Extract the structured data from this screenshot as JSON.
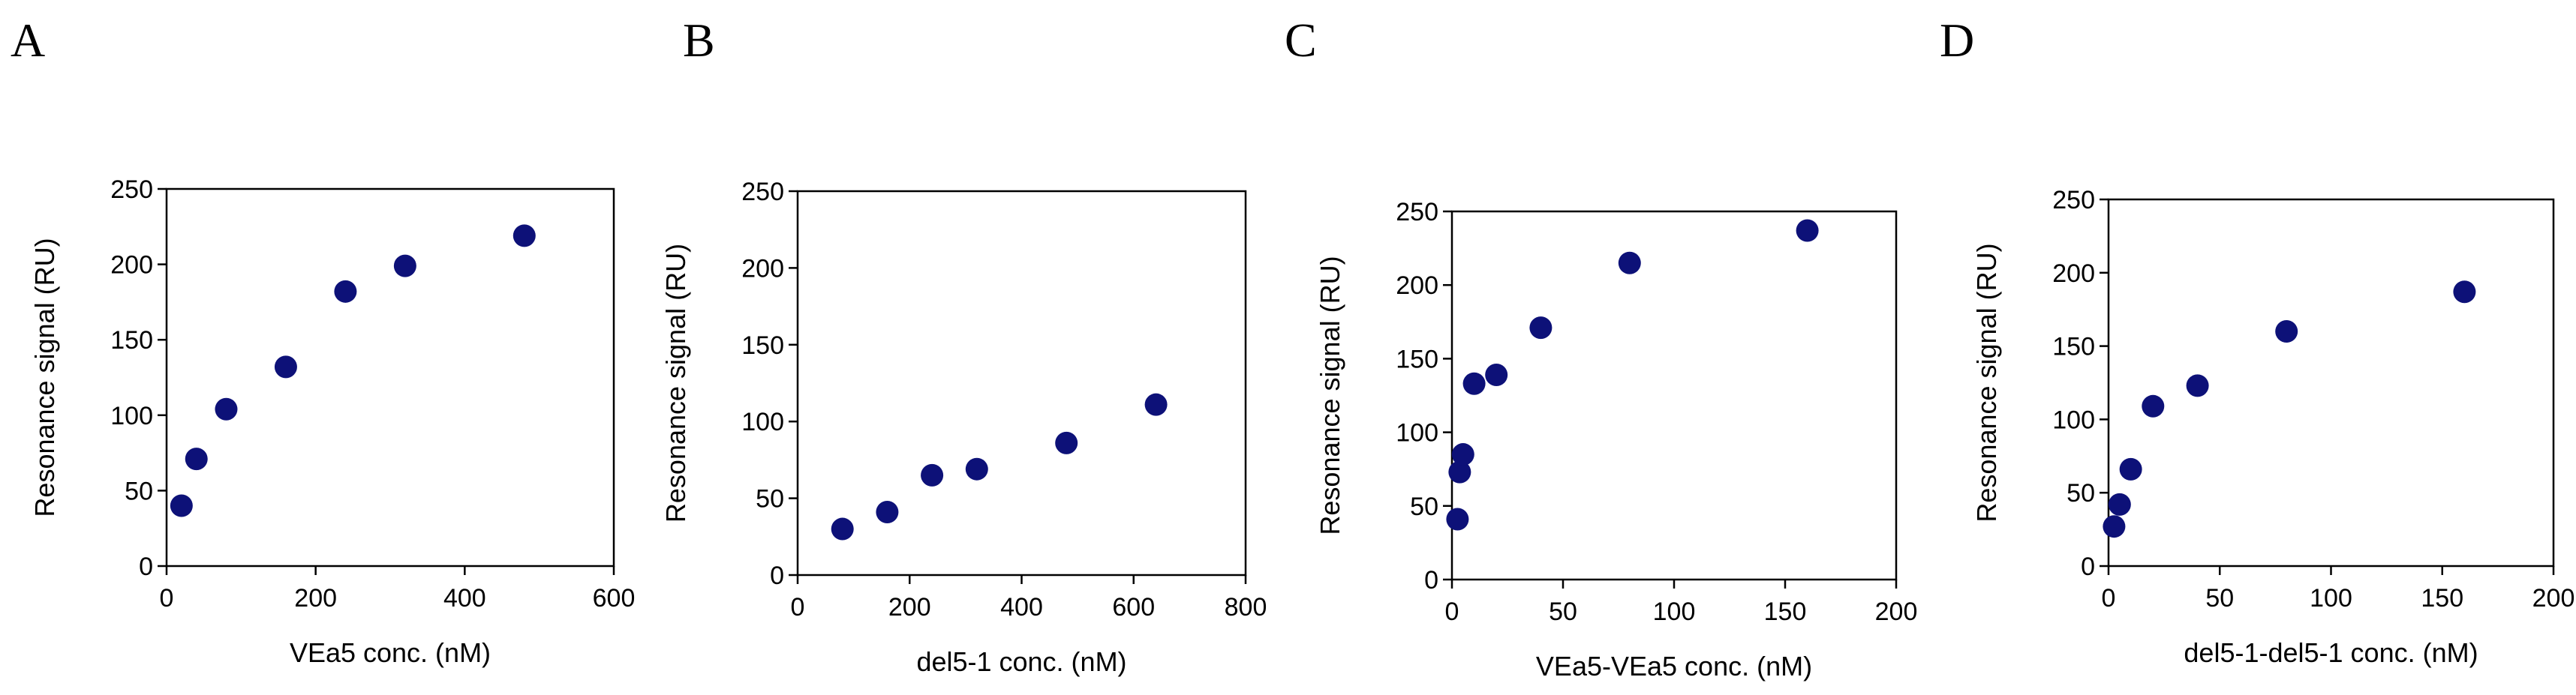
{
  "chart_data": [
    {
      "type": "scatter",
      "panel": "A",
      "title": "",
      "xlabel": "VEa5 conc. (nM)",
      "ylabel": "Resonance signal (RU)",
      "xlim": [
        0,
        600
      ],
      "ylim": [
        0,
        250
      ],
      "xticks": [
        0,
        200,
        400,
        600
      ],
      "yticks": [
        0,
        50,
        100,
        150,
        200,
        250
      ],
      "grid": false,
      "points": [
        {
          "x": 20,
          "y": 40
        },
        {
          "x": 40,
          "y": 71
        },
        {
          "x": 80,
          "y": 104
        },
        {
          "x": 160,
          "y": 132
        },
        {
          "x": 240,
          "y": 182
        },
        {
          "x": 320,
          "y": 199
        },
        {
          "x": 480,
          "y": 219
        }
      ]
    },
    {
      "type": "scatter",
      "panel": "B",
      "title": "",
      "xlabel": "del5-1 conc. (nM)",
      "ylabel": "Resonance signal (RU)",
      "xlim": [
        0,
        800
      ],
      "ylim": [
        0,
        250
      ],
      "xticks": [
        0,
        200,
        400,
        600,
        800
      ],
      "yticks": [
        0,
        50,
        100,
        150,
        200,
        250
      ],
      "grid": false,
      "points": [
        {
          "x": 80,
          "y": 30
        },
        {
          "x": 160,
          "y": 41
        },
        {
          "x": 240,
          "y": 65
        },
        {
          "x": 320,
          "y": 69
        },
        {
          "x": 480,
          "y": 86
        },
        {
          "x": 640,
          "y": 111
        }
      ]
    },
    {
      "type": "scatter",
      "panel": "C",
      "title": "",
      "xlabel": "VEa5-VEa5 conc. (nM)",
      "ylabel": "Resonance signal (RU)",
      "xlim": [
        0,
        200
      ],
      "ylim": [
        0,
        250
      ],
      "xticks": [
        0,
        50,
        100,
        150,
        200
      ],
      "yticks": [
        0,
        50,
        100,
        150,
        200,
        250
      ],
      "grid": false,
      "points": [
        {
          "x": 2.5,
          "y": 41
        },
        {
          "x": 3.5,
          "y": 73
        },
        {
          "x": 5,
          "y": 85
        },
        {
          "x": 10,
          "y": 133
        },
        {
          "x": 20,
          "y": 139
        },
        {
          "x": 40,
          "y": 171
        },
        {
          "x": 80,
          "y": 215
        },
        {
          "x": 160,
          "y": 237
        }
      ]
    },
    {
      "type": "scatter",
      "panel": "D",
      "title": "",
      "xlabel": "del5-1-del5-1 conc. (nM)",
      "ylabel": "Resonance signal (RU)",
      "xlim": [
        0,
        200
      ],
      "ylim": [
        0,
        250
      ],
      "xticks": [
        0,
        50,
        100,
        150,
        200
      ],
      "yticks": [
        0,
        50,
        100,
        150,
        200,
        250
      ],
      "grid": false,
      "points": [
        {
          "x": 2.5,
          "y": 27
        },
        {
          "x": 5,
          "y": 42
        },
        {
          "x": 10,
          "y": 66
        },
        {
          "x": 20,
          "y": 109
        },
        {
          "x": 40,
          "y": 123
        },
        {
          "x": 80,
          "y": 160
        },
        {
          "x": 160,
          "y": 187
        }
      ]
    }
  ],
  "colors": {
    "marker": "#0d1178",
    "axis": "#000000",
    "background": "#ffffff"
  }
}
